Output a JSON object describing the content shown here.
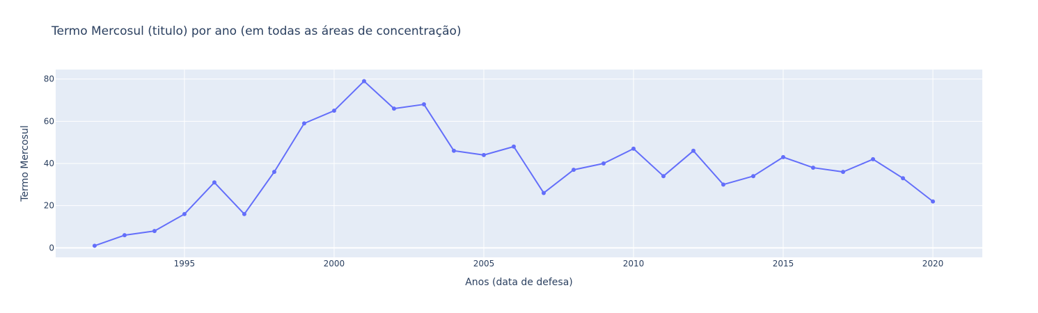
{
  "chart_data": {
    "type": "line",
    "title": "Termo Mercosul (titulo) por ano (em todas as áreas de concentração)",
    "xlabel": "Anos (data de defesa)",
    "ylabel": "Termo Mercosul",
    "x": [
      1992,
      1993,
      1994,
      1995,
      1996,
      1997,
      1998,
      1999,
      2000,
      2001,
      2002,
      2003,
      2004,
      2005,
      2006,
      2007,
      2008,
      2009,
      2010,
      2011,
      2012,
      2013,
      2014,
      2015,
      2016,
      2017,
      2018,
      2019,
      2020
    ],
    "series": [
      {
        "name": "Termo Mercosul",
        "values": [
          1,
          6,
          8,
          16,
          31,
          16,
          36,
          59,
          65,
          79,
          66,
          68,
          46,
          44,
          48,
          26,
          37,
          40,
          47,
          34,
          46,
          30,
          34,
          43,
          38,
          36,
          42,
          33,
          22
        ],
        "color": "#636efa"
      }
    ],
    "xlim": [
      1990.7,
      2021.65
    ],
    "ylim": [
      -4.5,
      84.5
    ],
    "xticks": [
      1995,
      2000,
      2005,
      2010,
      2015,
      2020
    ],
    "xtick_labels": [
      "1995",
      "2000",
      "2005",
      "2010",
      "2015",
      "2020"
    ],
    "yticks": [
      0,
      20,
      40,
      60,
      80
    ],
    "ytick_labels": [
      "0",
      "20",
      "40",
      "60",
      "80"
    ],
    "grid": true,
    "plot_bg_color": "#e5ecf6",
    "grid_color": "#ffffff"
  }
}
